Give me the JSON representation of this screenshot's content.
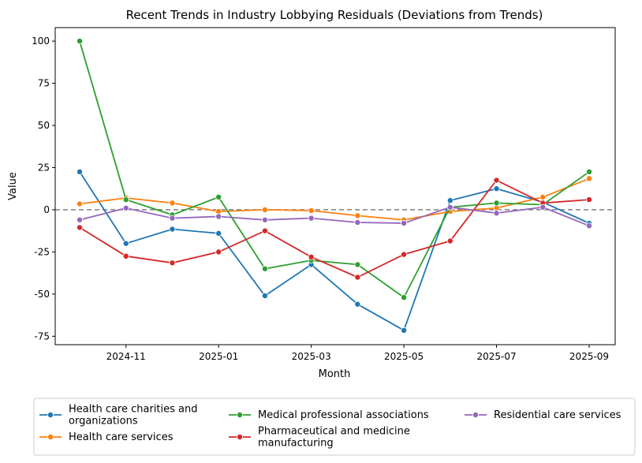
{
  "chart_data": {
    "type": "line",
    "title": "Recent Trends in Industry Lobbying Residuals (Deviations from Trends)",
    "xlabel": "Month",
    "ylabel": "Value",
    "ylim": [
      -80,
      108
    ],
    "yticks": [
      100,
      75,
      50,
      25,
      0,
      -25,
      -50,
      -75
    ],
    "x": [
      "2024-10",
      "2024-11",
      "2024-12",
      "2025-01",
      "2025-02",
      "2025-03",
      "2025-04",
      "2025-05",
      "2025-06",
      "2025-07",
      "2025-08",
      "2025-09"
    ],
    "xticks": [
      {
        "at": "2024-11",
        "label": "2024-11"
      },
      {
        "at": "2025-01",
        "label": "2025-01"
      },
      {
        "at": "2025-03",
        "label": "2025-03"
      },
      {
        "at": "2025-05",
        "label": "2025-05"
      },
      {
        "at": "2025-07",
        "label": "2025-07"
      },
      {
        "at": "2025-09",
        "label": "2025-09"
      }
    ],
    "reference_line": {
      "y": 0,
      "style": "dashed",
      "color": "#808080"
    },
    "grid": false,
    "legend_position": "bottom, outside, 3 columns",
    "series": [
      {
        "name": "Health care charities and organizations",
        "name_lines": [
          "Health care charities and",
          "organizations"
        ],
        "color": "#1f77b4",
        "values": [
          22.5,
          -20,
          -11.5,
          -14,
          -51,
          -32.5,
          -56,
          -71.5,
          5.5,
          12.5,
          4.5,
          -8
        ]
      },
      {
        "name": "Health care services",
        "name_lines": [
          "Health care services"
        ],
        "color": "#ff7f0e",
        "values": [
          3.5,
          7,
          4,
          -1,
          0,
          -0.5,
          -3.5,
          -6,
          -1,
          1,
          7.5,
          18.5
        ]
      },
      {
        "name": "Medical professional associations",
        "name_lines": [
          "Medical professional associations"
        ],
        "color": "#2ca02c",
        "values": [
          100,
          6,
          -3,
          7.5,
          -35,
          -30,
          -32.5,
          -52,
          1.5,
          4,
          3,
          22.5
        ]
      },
      {
        "name": "Pharmaceutical and medicine manufacturing",
        "name_lines": [
          "Pharmaceutical and medicine",
          "manufacturing"
        ],
        "color": "#d62728",
        "values": [
          -10.5,
          -27.5,
          -31.5,
          -25,
          -12.5,
          -28,
          -40,
          -26.5,
          -18.5,
          17.5,
          4,
          6
        ]
      },
      {
        "name": "Residential care services",
        "name_lines": [
          "Residential care services"
        ],
        "color": "#9467bd",
        "values": [
          -6,
          1,
          -5,
          -4,
          -6,
          -5,
          -7.5,
          -8,
          1.5,
          -2,
          1.5,
          -9.5
        ]
      }
    ]
  }
}
